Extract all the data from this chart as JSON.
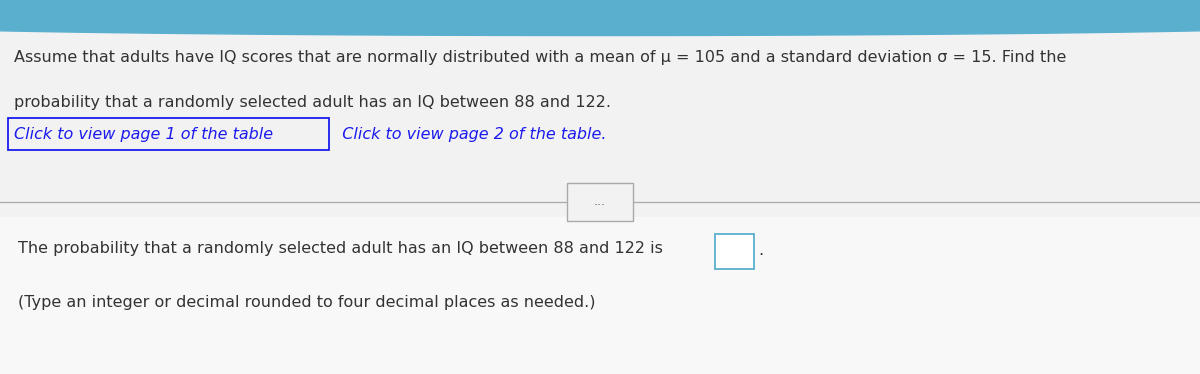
{
  "bg_color": "#f2f2f2",
  "top_bar_color": "#5aafcf",
  "main_text_line1": "Assume that adults have IQ scores that are normally distributed with a mean of μ = 105 and a standard deviation σ = 15. Find the",
  "main_text_line2": "probability that a randomly selected adult has an IQ between 88 and 122.",
  "link_text1": "Click to view page 1 of the table",
  "link_text2": "  Click to view page 2 of the table.",
  "link_color": "#1a1aee",
  "divider_color": "#aaaaaa",
  "dots_text": "...",
  "bottom_text_line1": "The probability that a randomly selected adult has an IQ between 88 and 122 is",
  "bottom_text_line2": "(Type an integer or decimal rounded to four decimal places as needed.)",
  "text_color": "#333333",
  "font_size_main": 11.5,
  "font_size_bottom": 11.5,
  "box_color": "#5aafcf",
  "fig_width": 12.0,
  "fig_height": 3.74
}
